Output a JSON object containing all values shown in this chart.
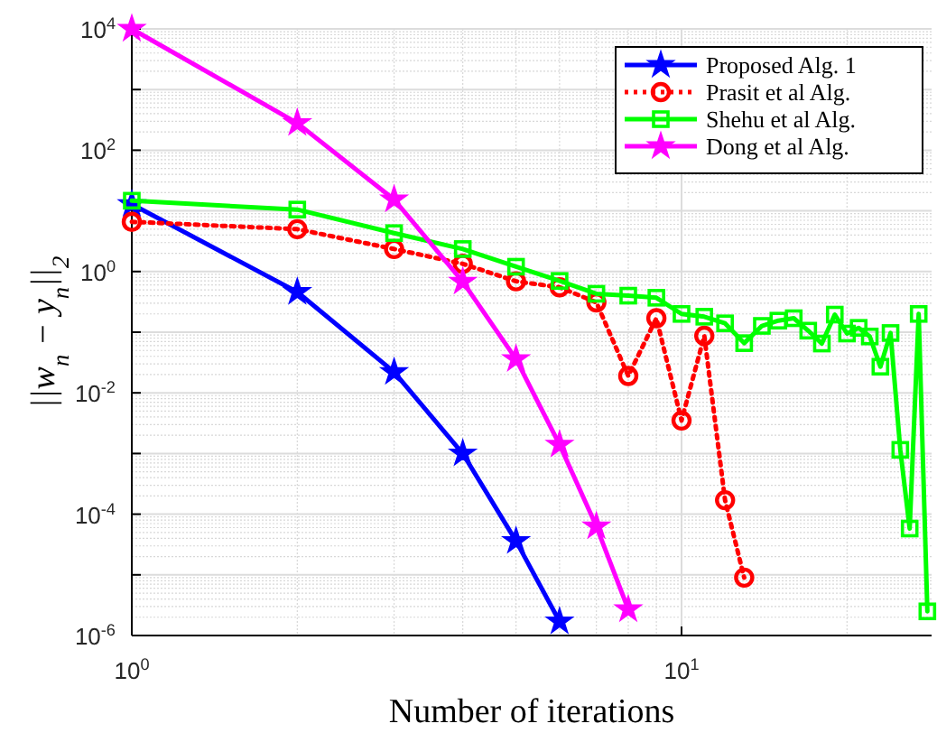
{
  "chart_data": {
    "type": "line",
    "xlabel": "Number of iterations",
    "ylabel": "||w$_{n}$ − y$_{n}$||$_{2}$",
    "log": "xy",
    "grid": true,
    "legend": "top right",
    "xlim": [
      1,
      28.5
    ],
    "xticks": [
      {
        "value": 1,
        "label": "10$^{0}$"
      },
      {
        "value": 10,
        "label": "10$^{1}$"
      }
    ],
    "ylim": [
      1e-06,
      10000
    ],
    "yticks": [
      {
        "value": 1e-06,
        "label": "10$^{-6}$"
      },
      {
        "value": 1e-05,
        "label": null
      },
      {
        "value": 0.0001,
        "label": "10$^{-4}$"
      },
      {
        "value": 0.001,
        "label": null
      },
      {
        "value": 0.01,
        "label": "10$^{-2}$"
      },
      {
        "value": 0.1,
        "label": null
      },
      {
        "value": 1,
        "label": "10$^{0}$"
      },
      {
        "value": 10,
        "label": null
      },
      {
        "value": 100,
        "label": "10$^{2}$"
      },
      {
        "value": 1000,
        "label": null
      },
      {
        "value": 10000,
        "label": "10$^{4}$"
      }
    ],
    "series": [
      {
        "name": "Proposed Alg. 1",
        "color": "#0000ff",
        "marker": "star",
        "line_style": "solid",
        "x": [
          1,
          2,
          3,
          4,
          5,
          6
        ],
        "values": [
          12.9,
          0.46,
          0.022,
          0.001,
          3.6e-05,
          1.7e-06
        ]
      },
      {
        "name": "Prasit et al Alg.",
        "color": "#ff0000",
        "marker": "circle",
        "line_style": "dotted",
        "x": [
          1,
          2,
          3,
          4,
          5,
          6,
          7,
          8,
          9,
          10,
          11,
          12,
          13
        ],
        "values": [
          6.6,
          5,
          2.35,
          1.34,
          0.69,
          0.55,
          0.31,
          0.019,
          0.17,
          0.0035,
          0.087,
          0.00017,
          9e-06
        ]
      },
      {
        "name": "Shehu et al Alg.",
        "color": "#00ff00",
        "marker": "square",
        "line_style": "solid",
        "x": [
          1,
          2,
          3,
          4,
          5,
          6,
          7,
          8,
          9,
          10,
          11,
          12,
          13,
          14,
          15,
          16,
          17,
          18,
          19,
          20,
          21,
          22,
          23,
          24,
          25,
          26,
          27,
          28
        ],
        "values": [
          14.7,
          10.5,
          4.3,
          2.35,
          1.2,
          0.7,
          0.43,
          0.4,
          0.37,
          0.2,
          0.18,
          0.14,
          0.066,
          0.127,
          0.155,
          0.17,
          0.106,
          0.065,
          0.195,
          0.095,
          0.118,
          0.085,
          0.027,
          0.097,
          0.00115,
          5.8e-05,
          0.2,
          2.5e-06
        ]
      },
      {
        "name": "Dong et al Alg.",
        "color": "#ff00ff",
        "marker": "star",
        "line_style": "solid",
        "x": [
          1,
          2,
          3,
          4,
          5,
          6,
          7,
          8
        ],
        "values": [
          10000,
          280,
          15.4,
          0.68,
          0.036,
          0.0014,
          6.3e-05,
          2.7e-06
        ]
      }
    ]
  }
}
